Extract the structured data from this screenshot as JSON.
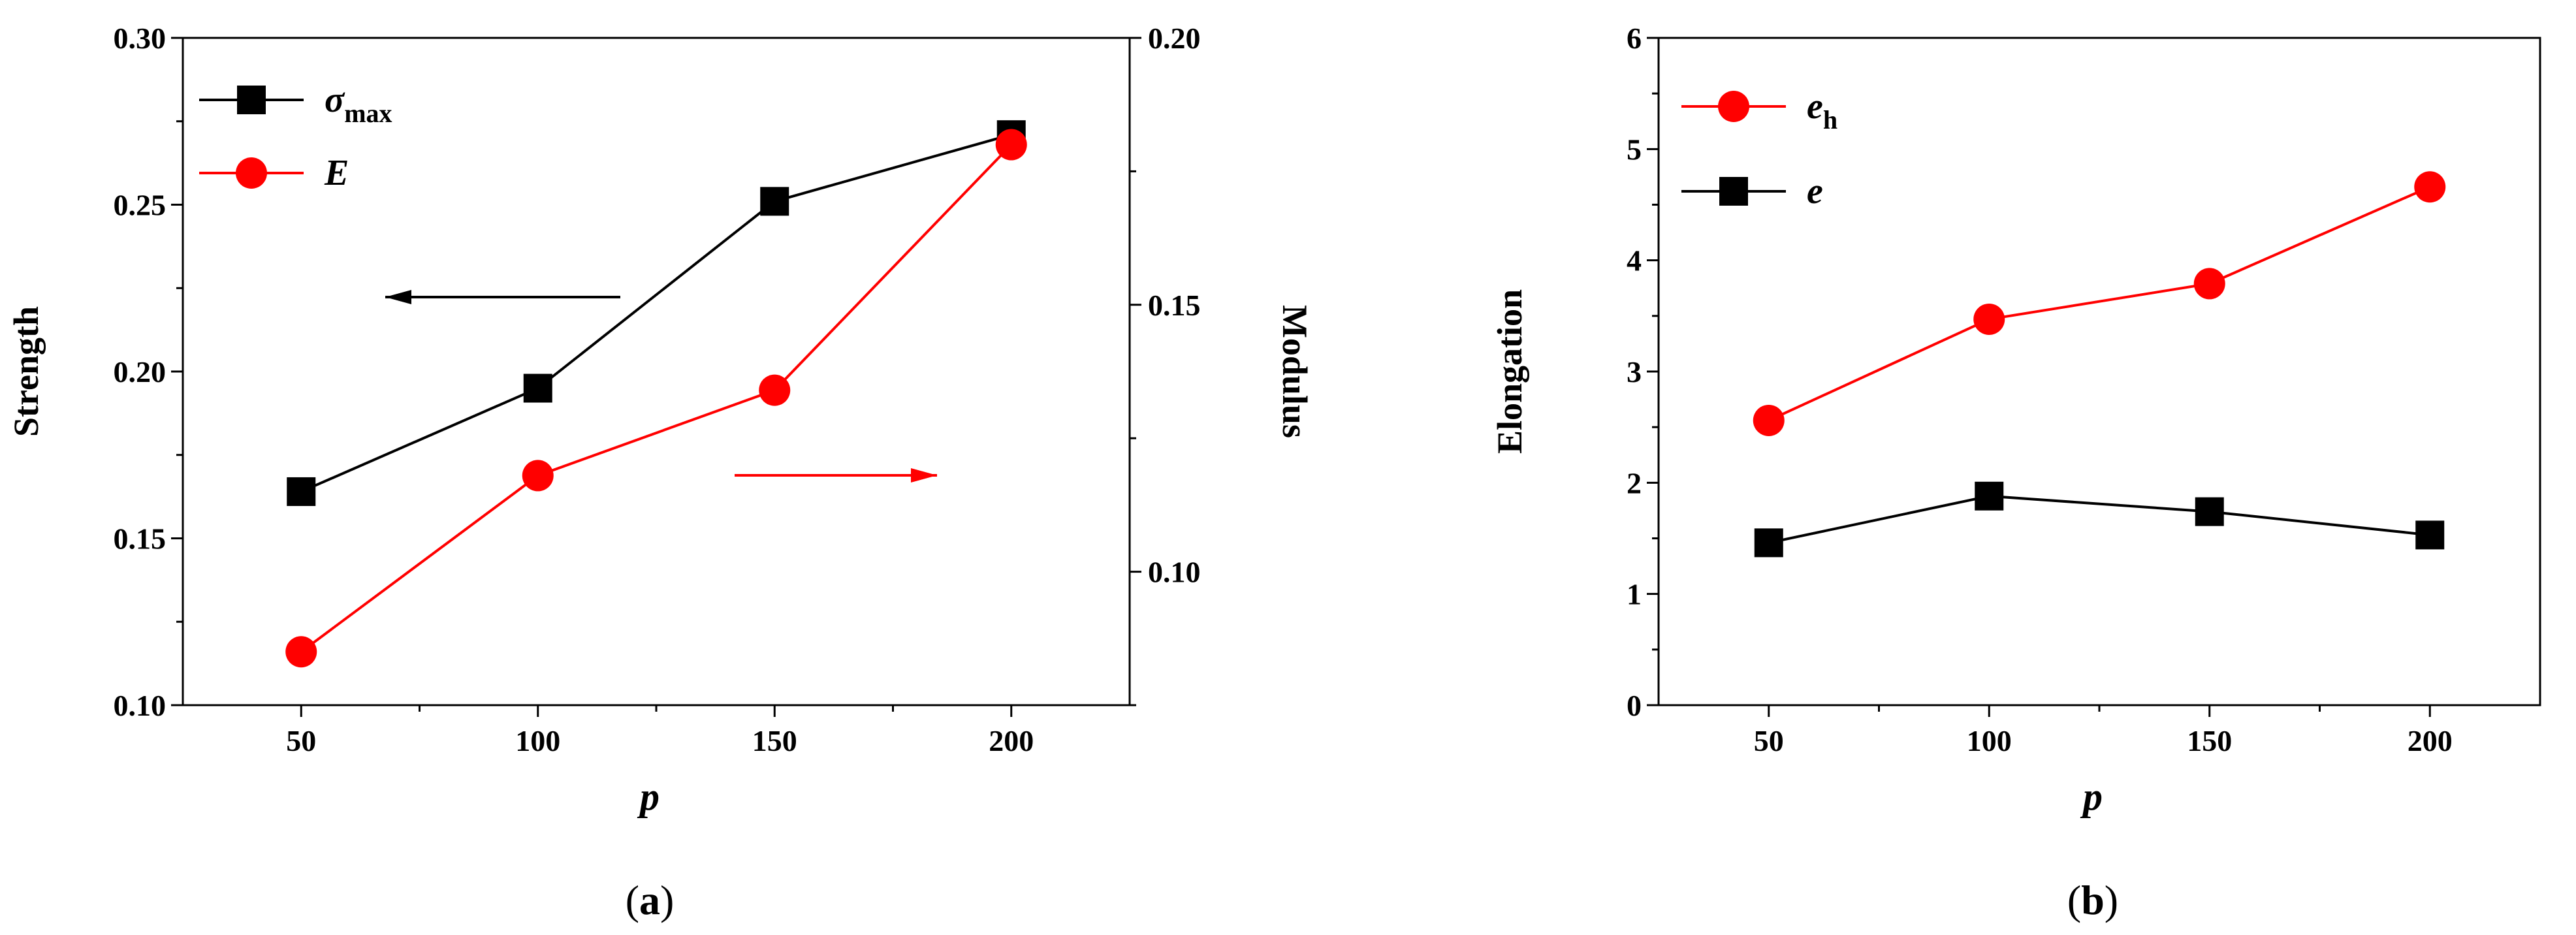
{
  "chart_data": [
    {
      "id": "a",
      "type": "line",
      "caption_open": "(",
      "caption_letter": "a",
      "caption_close": ")",
      "xlabel": "p",
      "ylabel": "Strength",
      "ylabel_right": "Modulus",
      "x": [
        50,
        100,
        150,
        200
      ],
      "xlim": [
        25,
        225
      ],
      "ylim": [
        0.1,
        0.3
      ],
      "ylim_right": [
        0.075,
        0.2
      ],
      "x_ticks": [
        "50",
        "100",
        "150",
        "200"
      ],
      "y_ticks": [
        "0.10",
        "0.15",
        "0.20",
        "0.25",
        "0.30"
      ],
      "y_ticks_right": [
        "0.10",
        "0.15",
        "0.20"
      ],
      "series": [
        {
          "name": "σmax",
          "legend_main": "σ",
          "legend_sub": "max",
          "axis": "left",
          "marker": "square",
          "color": "#000000",
          "values": [
            0.164,
            0.195,
            0.251,
            0.271
          ]
        },
        {
          "name": "E",
          "legend_main": "E",
          "legend_sub": "",
          "axis": "right",
          "marker": "circle",
          "color": "#ff0000",
          "values": [
            0.085,
            0.118,
            0.134,
            0.18
          ]
        }
      ],
      "annotations": [
        {
          "direction": "left",
          "color": "#000000",
          "meaning": "σmax uses left axis"
        },
        {
          "direction": "right",
          "color": "#ff0000",
          "meaning": "E uses right axis"
        }
      ]
    },
    {
      "id": "b",
      "type": "line",
      "caption_open": "(",
      "caption_letter": "b",
      "caption_close": ")",
      "xlabel": "p",
      "ylabel": "Elongation",
      "x": [
        50,
        100,
        150,
        200
      ],
      "xlim": [
        25,
        225
      ],
      "ylim": [
        0,
        6
      ],
      "x_ticks": [
        "50",
        "100",
        "150",
        "200"
      ],
      "y_ticks": [
        "0",
        "1",
        "2",
        "3",
        "4",
        "5",
        "6"
      ],
      "series": [
        {
          "name": "eh",
          "legend_main": "e",
          "legend_sub": "h",
          "marker": "circle",
          "color": "#ff0000",
          "values": [
            2.56,
            3.47,
            3.79,
            4.66
          ]
        },
        {
          "name": "e",
          "legend_main": "e",
          "legend_sub": "",
          "marker": "square",
          "color": "#000000",
          "values": [
            1.46,
            1.88,
            1.74,
            1.53
          ]
        }
      ]
    }
  ]
}
